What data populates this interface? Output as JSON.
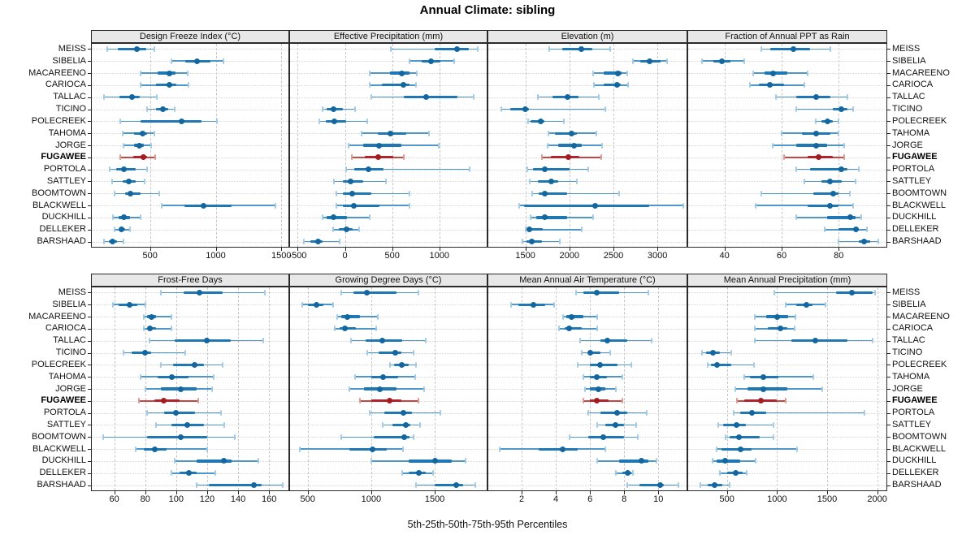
{
  "title": "Annual Climate: sibling",
  "xlabel": "5th-25th-50th-75th-95th Percentiles",
  "highlight_site": "FUGAWEE",
  "colors": {
    "blue_main": "#1f77b4",
    "blue_whisker": "#4f97c9",
    "blue_cap": "#a3cbe5",
    "blue_dot": "#13679e",
    "red_main": "#b2232b",
    "red_whisker": "#c44741",
    "red_cap": "#dc9a92",
    "red_dot": "#a31c22",
    "strip_bg": "#e8e8e8",
    "panel_border": "#2a2a2a",
    "grid_vertical": "#c6c6c6",
    "grid_horizontal": "#d6d6d6",
    "text": "#111111"
  },
  "chart_data": {
    "type": "trellis-percentile-dotplot",
    "title": "Annual Climate: sibling",
    "xlabel": "5th-25th-50th-75th-95th Percentiles",
    "percentiles": [
      5,
      25,
      50,
      75,
      95
    ],
    "legend_position": "none",
    "grid": "dashed-vertical-at-ticks, dotted-horizontal-per-row",
    "sites": [
      "MEISS",
      "SIBELIA",
      "MACAREENO",
      "CARIOCA",
      "TALLAC",
      "TICINO",
      "POLECREEK",
      "TAHOMA",
      "JORGE",
      "FUGAWEE",
      "PORTOLA",
      "SATTLEY",
      "BOOMTOWN",
      "BLACKWELL",
      "DUCKHILL",
      "DELLEKER",
      "BARSHAAD"
    ],
    "panels": [
      {
        "title": "Design Freeze Index (°C)",
        "ticks": [
          500,
          1000,
          1500
        ],
        "xlim": [
          50,
          1560
        ],
        "values": [
          [
            175,
            255,
            400,
            470,
            535
          ],
          [
            660,
            770,
            860,
            960,
            1060
          ],
          [
            430,
            560,
            645,
            695,
            785
          ],
          [
            430,
            545,
            650,
            700,
            790
          ],
          [
            150,
            265,
            360,
            420,
            550
          ],
          [
            480,
            545,
            600,
            640,
            685
          ],
          [
            275,
            430,
            740,
            890,
            1010
          ],
          [
            290,
            380,
            445,
            480,
            530
          ],
          [
            300,
            375,
            420,
            450,
            505
          ],
          [
            270,
            370,
            450,
            480,
            540
          ],
          [
            195,
            240,
            300,
            390,
            475
          ],
          [
            210,
            290,
            340,
            390,
            460
          ],
          [
            230,
            310,
            350,
            430,
            570
          ],
          [
            590,
            760,
            905,
            1120,
            1455
          ],
          [
            215,
            260,
            300,
            350,
            430
          ],
          [
            230,
            260,
            285,
            310,
            350
          ],
          [
            150,
            185,
            215,
            250,
            300
          ]
        ]
      },
      {
        "title": "Effective Precipitation (mm)",
        "ticks": [
          -500,
          0,
          500,
          1000
        ],
        "xlim": [
          -590,
          1510
        ],
        "values": [
          [
            490,
            950,
            1185,
            1310,
            1405
          ],
          [
            680,
            810,
            910,
            1010,
            1160
          ],
          [
            265,
            480,
            605,
            680,
            760
          ],
          [
            265,
            395,
            615,
            680,
            750
          ],
          [
            275,
            625,
            860,
            1195,
            1365
          ],
          [
            -240,
            -190,
            -125,
            -20,
            105
          ],
          [
            -270,
            -205,
            -110,
            10,
            235
          ],
          [
            175,
            350,
            480,
            650,
            890
          ],
          [
            35,
            195,
            360,
            595,
            995
          ],
          [
            75,
            210,
            350,
            510,
            625
          ],
          [
            10,
            95,
            250,
            410,
            1320
          ],
          [
            -120,
            -20,
            60,
            195,
            435
          ],
          [
            -90,
            -20,
            80,
            280,
            680
          ],
          [
            -95,
            -20,
            90,
            365,
            680
          ],
          [
            -235,
            -190,
            -125,
            25,
            260
          ],
          [
            -125,
            -65,
            15,
            80,
            150
          ],
          [
            -435,
            -365,
            -285,
            -235,
            -55
          ]
        ]
      },
      {
        "title": "Elevation (m)",
        "ticks": [
          1500,
          2000,
          2500,
          3000
        ],
        "xlim": [
          1070,
          3340
        ],
        "values": [
          [
            1770,
            1915,
            2135,
            2265,
            2465
          ],
          [
            2725,
            2805,
            2910,
            3035,
            3105
          ],
          [
            2265,
            2390,
            2550,
            2590,
            2660
          ],
          [
            2275,
            2390,
            2545,
            2580,
            2665
          ],
          [
            1640,
            1805,
            1980,
            2100,
            2335
          ],
          [
            1225,
            1330,
            1500,
            1545,
            2410
          ],
          [
            1535,
            1560,
            1675,
            1715,
            1940
          ],
          [
            1760,
            1835,
            2025,
            2085,
            2310
          ],
          [
            1750,
            1870,
            2050,
            2145,
            2375
          ],
          [
            1685,
            1790,
            1990,
            2115,
            2360
          ],
          [
            1525,
            1590,
            1720,
            2005,
            2215
          ],
          [
            1550,
            1640,
            1790,
            1870,
            2085
          ],
          [
            1575,
            1655,
            1725,
            1975,
            2565
          ],
          [
            1430,
            1485,
            2290,
            2910,
            3290
          ],
          [
            1555,
            1625,
            1720,
            1975,
            2265
          ],
          [
            1500,
            1530,
            1545,
            1700,
            2145
          ],
          [
            1470,
            1515,
            1570,
            1685,
            1895
          ]
        ]
      },
      {
        "title": "Fraction of Annual PPT as Rain",
        "ticks": [
          40,
          60,
          80
        ],
        "xlim": [
          27,
          97
        ],
        "values": [
          [
            53,
            56,
            64,
            70,
            77
          ],
          [
            32,
            36,
            39,
            42,
            47
          ],
          [
            50,
            54,
            57,
            62,
            69
          ],
          [
            49,
            52,
            56,
            61,
            68
          ],
          [
            58,
            65,
            72,
            77,
            83
          ],
          [
            65,
            78,
            81,
            83,
            85
          ],
          [
            72,
            74,
            76,
            78,
            80
          ],
          [
            60,
            67,
            72,
            77,
            80
          ],
          [
            57,
            65,
            72,
            76,
            82
          ],
          [
            61,
            69,
            73,
            78,
            82
          ],
          [
            65,
            70,
            81,
            83,
            87
          ],
          [
            68,
            74,
            77,
            81,
            86
          ],
          [
            53,
            71,
            78,
            80,
            84
          ],
          [
            51,
            69,
            77,
            80,
            85
          ],
          [
            65,
            76,
            84,
            86,
            88
          ],
          [
            75,
            80,
            86,
            87,
            90
          ],
          [
            80,
            87,
            89,
            91,
            94
          ]
        ]
      },
      {
        "title": "Frost-Free Days",
        "ticks": [
          60,
          80,
          100,
          120,
          140,
          160
        ],
        "xlim": [
          45,
          173
        ],
        "values": [
          [
            90,
            105,
            115,
            130,
            157
          ],
          [
            59,
            63,
            70,
            75,
            80
          ],
          [
            79,
            81,
            84,
            87,
            97
          ],
          [
            79,
            81,
            83,
            87,
            97
          ],
          [
            83,
            99,
            120,
            135,
            156
          ],
          [
            66,
            71,
            80,
            84,
            106
          ],
          [
            90,
            98,
            112,
            118,
            130
          ],
          [
            77,
            88,
            97,
            108,
            124
          ],
          [
            80,
            90,
            103,
            113,
            123
          ],
          [
            76,
            86,
            92,
            102,
            114
          ],
          [
            81,
            92,
            100,
            112,
            129
          ],
          [
            87,
            97,
            107,
            118,
            131
          ],
          [
            53,
            81,
            103,
            120,
            138
          ],
          [
            74,
            79,
            86,
            94,
            120
          ],
          [
            99,
            113,
            131,
            136,
            153
          ],
          [
            97,
            102,
            108,
            113,
            125
          ],
          [
            113,
            121,
            150,
            155,
            169
          ]
        ]
      },
      {
        "title": "Growing Degree Days (°C)",
        "ticks": [
          500,
          1000,
          1500
        ],
        "xlim": [
          355,
          1915
        ],
        "values": [
          [
            765,
            860,
            965,
            1200,
            1370
          ],
          [
            455,
            505,
            570,
            625,
            700
          ],
          [
            730,
            765,
            810,
            910,
            1050
          ],
          [
            715,
            750,
            795,
            880,
            1040
          ],
          [
            840,
            955,
            1090,
            1245,
            1430
          ],
          [
            970,
            1060,
            1190,
            1235,
            1335
          ],
          [
            1145,
            1180,
            1240,
            1295,
            1350
          ],
          [
            870,
            1000,
            1095,
            1210,
            1345
          ],
          [
            825,
            945,
            1065,
            1200,
            1415
          ],
          [
            910,
            1000,
            1145,
            1235,
            1370
          ],
          [
            985,
            1105,
            1255,
            1320,
            1545
          ],
          [
            1090,
            1165,
            1270,
            1310,
            1385
          ],
          [
            765,
            1020,
            1260,
            1300,
            1330
          ],
          [
            440,
            825,
            1010,
            1125,
            1250
          ],
          [
            1000,
            1295,
            1500,
            1635,
            1745
          ],
          [
            1245,
            1295,
            1375,
            1430,
            1485
          ],
          [
            1355,
            1500,
            1670,
            1725,
            1820
          ]
        ]
      },
      {
        "title": "Mean Annual Air Temperature (°C)",
        "ticks": [
          2,
          4,
          6,
          8,
          10
        ],
        "xlim": [
          0,
          11.7
        ],
        "values": [
          [
            5.2,
            5.6,
            6.4,
            7.7,
            9.4
          ],
          [
            1.4,
            1.8,
            2.7,
            3.4,
            3.9
          ],
          [
            4.4,
            4.6,
            4.9,
            5.6,
            6.4
          ],
          [
            4.2,
            4.5,
            4.8,
            5.5,
            6.4
          ],
          [
            5.4,
            6.6,
            7.0,
            8.2,
            9.6
          ],
          [
            5.5,
            5.9,
            6.0,
            6.6,
            7.2
          ],
          [
            5.3,
            6.0,
            6.6,
            7.6,
            8.4
          ],
          [
            5.6,
            6.0,
            6.4,
            7.0,
            7.9
          ],
          [
            5.7,
            6.0,
            6.5,
            6.9,
            7.5
          ],
          [
            5.6,
            6.0,
            6.4,
            7.1,
            7.9
          ],
          [
            5.9,
            6.6,
            7.6,
            8.2,
            9.3
          ],
          [
            6.4,
            6.9,
            7.5,
            8.0,
            8.7
          ],
          [
            4.8,
            5.9,
            6.8,
            8.0,
            8.8
          ],
          [
            0.7,
            3.0,
            4.4,
            5.3,
            6.9
          ],
          [
            6.4,
            7.7,
            9.0,
            9.4,
            9.9
          ],
          [
            7.5,
            7.9,
            8.2,
            8.4,
            8.5
          ],
          [
            8.2,
            8.9,
            10.1,
            10.3,
            11.2
          ]
        ]
      },
      {
        "title": "Mean Annual Precipitation (mm)",
        "ticks": [
          500,
          1000,
          1500,
          2000
        ],
        "xlim": [
          105,
          2100
        ],
        "values": [
          [
            975,
            1590,
            1745,
            1950,
            1980
          ],
          [
            1090,
            1195,
            1295,
            1355,
            1480
          ],
          [
            775,
            895,
            1000,
            1110,
            1180
          ],
          [
            775,
            910,
            1030,
            1105,
            1175
          ],
          [
            780,
            1140,
            1385,
            1705,
            1955
          ],
          [
            255,
            290,
            360,
            430,
            545
          ],
          [
            305,
            340,
            405,
            540,
            770
          ],
          [
            670,
            730,
            865,
            1015,
            1360
          ],
          [
            580,
            705,
            860,
            1100,
            1450
          ],
          [
            600,
            670,
            835,
            1000,
            1090
          ],
          [
            570,
            635,
            750,
            895,
            1875
          ],
          [
            410,
            460,
            595,
            690,
            965
          ],
          [
            490,
            530,
            620,
            825,
            965
          ],
          [
            400,
            445,
            635,
            745,
            1200
          ],
          [
            360,
            400,
            485,
            635,
            790
          ],
          [
            430,
            500,
            590,
            660,
            700
          ],
          [
            235,
            305,
            380,
            450,
            525
          ]
        ]
      }
    ]
  }
}
